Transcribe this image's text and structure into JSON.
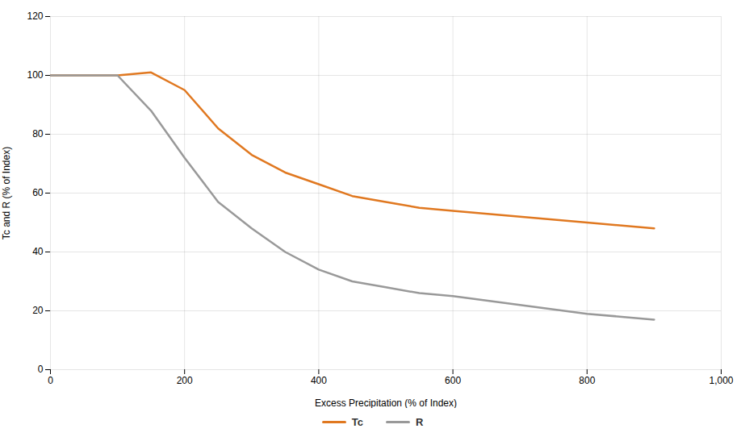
{
  "chart_data": {
    "type": "line",
    "x": [
      0,
      100,
      150,
      200,
      250,
      300,
      350,
      400,
      450,
      500,
      550,
      600,
      700,
      800,
      900
    ],
    "series": [
      {
        "name": "Tc",
        "color": "#E07820",
        "values": [
          100,
          100,
          101,
          95,
          82,
          73,
          67,
          63,
          59,
          57,
          55,
          54,
          52,
          50,
          48
        ]
      },
      {
        "name": "R",
        "color": "#999999",
        "values": [
          100,
          100,
          88,
          72,
          57,
          48,
          40,
          34,
          30,
          28,
          26,
          25,
          22,
          19,
          17
        ]
      }
    ],
    "xlabel": "Excess Precipitation (% of Index)",
    "ylabel": "Tc and R (% of Index)",
    "xlim": [
      0,
      1000
    ],
    "ylim": [
      0,
      120
    ],
    "xticks": [
      0,
      200,
      400,
      600,
      800,
      1000
    ],
    "yticks": [
      0,
      20,
      40,
      60,
      80,
      100,
      120
    ],
    "grid": true,
    "legend": "bottom"
  }
}
